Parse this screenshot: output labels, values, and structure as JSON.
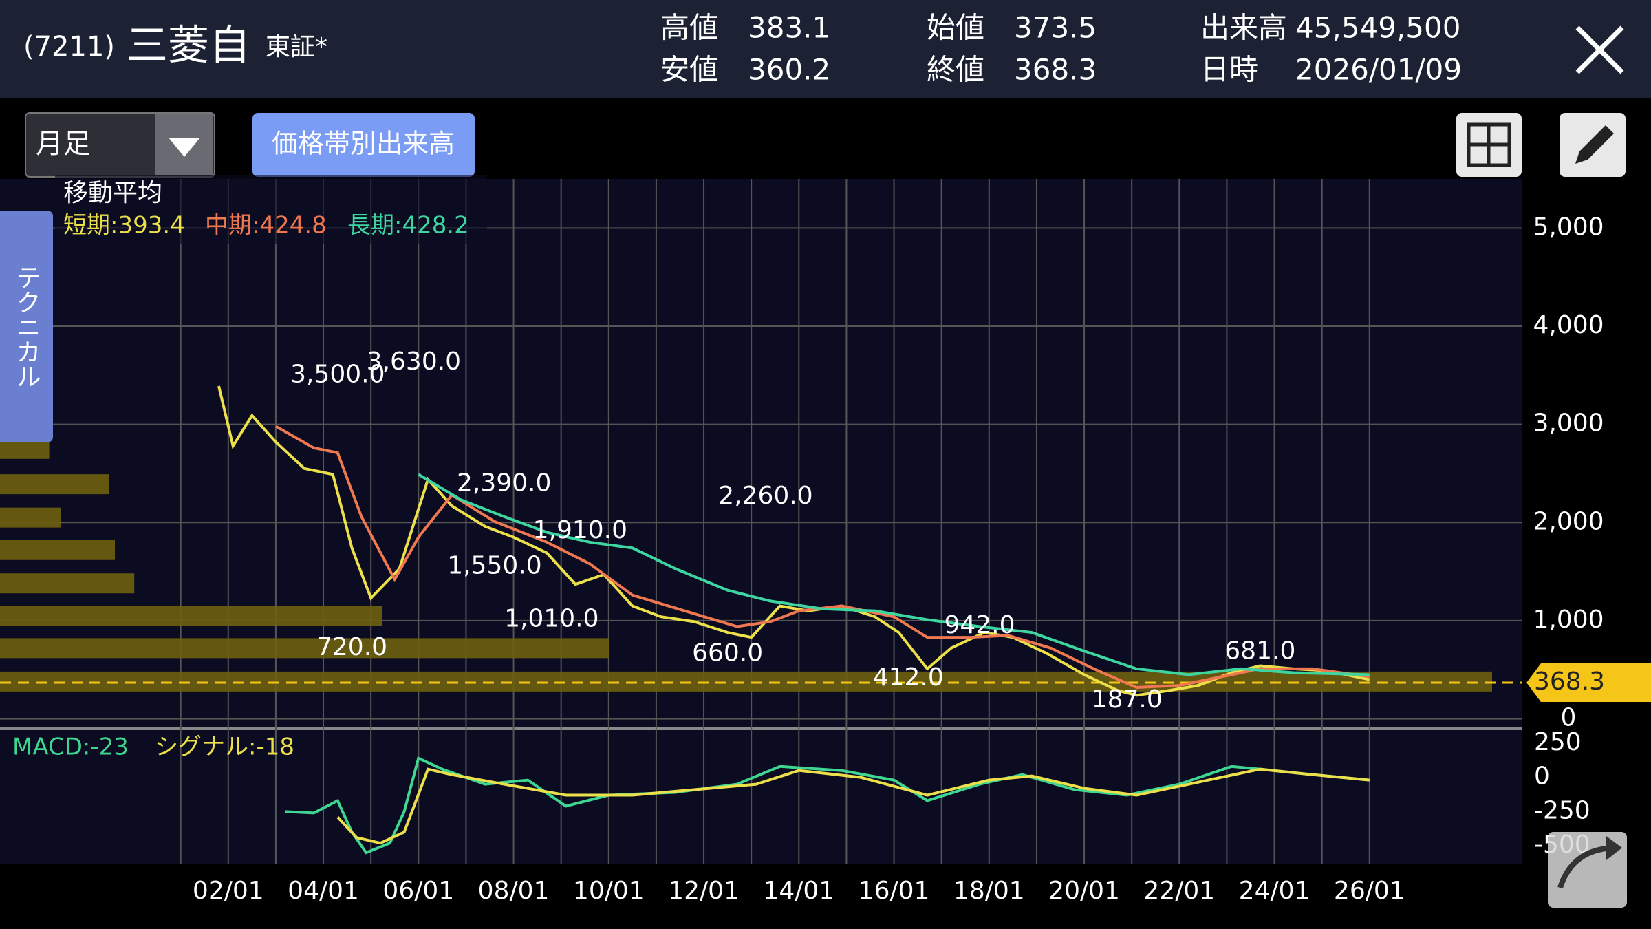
{
  "header": {
    "code": "(7211)",
    "name": "三菱自",
    "market": "東証*",
    "stats": [
      {
        "label": "高値",
        "value": "383.1"
      },
      {
        "label": "安値",
        "value": "360.2"
      },
      {
        "label": "始値",
        "value": "373.5"
      },
      {
        "label": "終値",
        "value": "368.3"
      },
      {
        "label": "出来高",
        "value": "45,549,500"
      },
      {
        "label": "日時",
        "value": "2026/01/09"
      }
    ]
  },
  "toolbar": {
    "period": "月足",
    "volume_button": "価格帯別出来高",
    "side_tab": "テクニカル"
  },
  "chart_data": {
    "type": "line",
    "legend_title": "移動平均",
    "xlim": [
      1997.2,
      2029.2
    ],
    "xticks": [
      {
        "value": 2001,
        "label": null
      },
      {
        "value": 2002,
        "label": "02/01"
      },
      {
        "value": 2003,
        "label": null
      },
      {
        "value": 2004,
        "label": "04/01"
      },
      {
        "value": 2005,
        "label": null
      },
      {
        "value": 2006,
        "label": "06/01"
      },
      {
        "value": 2007,
        "label": null
      },
      {
        "value": 2008,
        "label": "08/01"
      },
      {
        "value": 2009,
        "label": null
      },
      {
        "value": 2010,
        "label": "10/01"
      },
      {
        "value": 2011,
        "label": null
      },
      {
        "value": 2012,
        "label": "12/01"
      },
      {
        "value": 2013,
        "label": null
      },
      {
        "value": 2014,
        "label": "14/01"
      },
      {
        "value": 2015,
        "label": null
      },
      {
        "value": 2016,
        "label": "16/01"
      },
      {
        "value": 2017,
        "label": null
      },
      {
        "value": 2018,
        "label": "18/01"
      },
      {
        "value": 2019,
        "label": null
      },
      {
        "value": 2020,
        "label": "20/01"
      },
      {
        "value": 2021,
        "label": null
      },
      {
        "value": 2022,
        "label": "22/01"
      },
      {
        "value": 2023,
        "label": null
      },
      {
        "value": 2024,
        "label": "24/01"
      },
      {
        "value": 2025,
        "label": null
      },
      {
        "value": 2026,
        "label": "26/01"
      }
    ],
    "ylim": [
      -80,
      5500
    ],
    "yticks": [
      0,
      {
        "value": 1000,
        "label": "1,000"
      },
      {
        "value": 2000,
        "label": "2,000"
      },
      {
        "value": 3000,
        "label": "3,000"
      },
      {
        "value": 4000,
        "label": "4,000"
      },
      {
        "value": 5000,
        "label": "5,000"
      }
    ],
    "y2lim": [
      -630,
      345
    ],
    "y2ticks": [
      250,
      0,
      -250,
      -500
    ],
    "grid": true,
    "series": [
      {
        "name": "短期:393.4",
        "color": "#ece04a",
        "x": [
          2001.8,
          2002.1,
          2002.5,
          2003.0,
          2003.6,
          2004.2,
          2004.6,
          2005.0,
          2005.6,
          2006.2,
          2006.7,
          2007.4,
          2008.0,
          2008.7,
          2009.3,
          2009.9,
          2010.5,
          2011.1,
          2011.8,
          2012.5,
          2013.0,
          2013.6,
          2014.2,
          2014.9,
          2015.6,
          2016.1,
          2016.7,
          2017.2,
          2017.9,
          2018.5,
          2019.2,
          2020.0,
          2020.7,
          2021.1,
          2021.8,
          2022.4,
          2023.1,
          2023.7,
          2024.4,
          2025.1,
          2026.0
        ],
        "values": [
          3390,
          2780,
          3090,
          2820,
          2550,
          2490,
          1740,
          1230,
          1530,
          2440,
          2170,
          1960,
          1850,
          1690,
          1370,
          1470,
          1150,
          1040,
          990,
          880,
          830,
          1150,
          1100,
          1150,
          1040,
          880,
          510,
          720,
          880,
          830,
          670,
          450,
          290,
          240,
          290,
          340,
          470,
          540,
          510,
          490,
          400
        ]
      },
      {
        "name": "中期:424.8",
        "color": "#f07850",
        "x": [
          2003.0,
          2003.8,
          2004.3,
          2004.8,
          2005.5,
          2006.0,
          2006.7,
          2007.6,
          2008.7,
          2009.6,
          2010.5,
          2011.6,
          2012.7,
          2013.4,
          2014.0,
          2014.9,
          2016.0,
          2016.7,
          2017.6,
          2018.4,
          2019.3,
          2020.2,
          2021.1,
          2022.0,
          2022.9,
          2023.7,
          2024.8,
          2026.0
        ],
        "values": [
          2980,
          2760,
          2710,
          2060,
          1420,
          1850,
          2280,
          2010,
          1800,
          1580,
          1260,
          1100,
          940,
          990,
          1100,
          1150,
          1040,
          830,
          830,
          850,
          720,
          510,
          320,
          340,
          430,
          510,
          510,
          430
        ]
      },
      {
        "name": "長期:428.2",
        "color": "#3ed6a0",
        "x": [
          2006.0,
          2006.9,
          2007.8,
          2008.7,
          2009.6,
          2010.5,
          2011.4,
          2012.5,
          2013.4,
          2014.5,
          2015.6,
          2016.7,
          2017.8,
          2018.9,
          2020.0,
          2021.1,
          2022.2,
          2023.3,
          2024.4,
          2026.0
        ],
        "values": [
          2490,
          2230,
          2060,
          1900,
          1800,
          1740,
          1530,
          1310,
          1200,
          1120,
          1100,
          1010,
          940,
          880,
          690,
          510,
          450,
          510,
          470,
          450
        ]
      },
      {
        "name": "MACD:-23",
        "color": "#3ed690",
        "axis": "y2",
        "x": [
          2003.2,
          2003.8,
          2004.3,
          2004.6,
          2004.9,
          2005.4,
          2005.7,
          2006.0,
          2006.5,
          2007.4,
          2008.3,
          2009.1,
          2010.0,
          2011.4,
          2012.7,
          2013.6,
          2014.9,
          2016.0,
          2016.7,
          2017.8,
          2018.7,
          2019.8,
          2020.9,
          2022.0,
          2023.1,
          2023.7,
          2024.8,
          2026.0
        ],
        "values": [
          -250,
          -260,
          -170,
          -400,
          -550,
          -480,
          -250,
          140,
          60,
          -50,
          -20,
          -210,
          -130,
          -110,
          -50,
          80,
          50,
          -20,
          -170,
          -50,
          20,
          -90,
          -130,
          -50,
          80,
          60,
          20,
          -20
        ]
      },
      {
        "name": "シグナル:-18",
        "color": "#ece04a",
        "axis": "y2",
        "x": [
          2004.3,
          2004.7,
          2005.2,
          2005.7,
          2006.2,
          2006.7,
          2007.8,
          2009.1,
          2010.5,
          2011.8,
          2013.1,
          2014.0,
          2015.3,
          2016.7,
          2018.0,
          2018.9,
          2020.0,
          2021.1,
          2022.2,
          2023.7,
          2024.8,
          2026.0
        ],
        "values": [
          -290,
          -440,
          -480,
          -400,
          60,
          20,
          -50,
          -130,
          -130,
          -90,
          -50,
          50,
          0,
          -130,
          -20,
          10,
          -80,
          -130,
          -50,
          60,
          20,
          -20
        ]
      }
    ],
    "annotations": [
      {
        "x": 2004.3,
        "value": 3500,
        "label": "3,500.0"
      },
      {
        "x": 2005.9,
        "value": 3630,
        "label": "3,630.0"
      },
      {
        "x": 2007.8,
        "value": 2390,
        "label": "2,390.0"
      },
      {
        "x": 2009.4,
        "value": 1910,
        "label": "1,910.0"
      },
      {
        "x": 2007.6,
        "value": 1550,
        "label": "1,550.0"
      },
      {
        "x": 2008.8,
        "value": 1010,
        "label": "1,010.0"
      },
      {
        "x": 2004.6,
        "value": 720,
        "label": "720.0"
      },
      {
        "x": 2013.3,
        "value": 2260,
        "label": "2,260.0"
      },
      {
        "x": 2012.5,
        "value": 660,
        "label": "660.0"
      },
      {
        "x": 2017.8,
        "value": 942,
        "label": "942.0"
      },
      {
        "x": 2016.3,
        "value": 412,
        "label": "412.0"
      },
      {
        "x": 2020.9,
        "value": 187,
        "label": "187.0"
      },
      {
        "x": 2023.7,
        "value": 681,
        "label": "681.0"
      }
    ],
    "volume_profile": {
      "color": "#6e6010",
      "prices": [
        2750,
        2390,
        2050,
        1720,
        1380,
        1050,
        720,
        380
      ],
      "values": [
        3.3,
        7.3,
        4.1,
        7.7,
        9.0,
        25.6,
        40.8,
        100
      ]
    },
    "last_price": {
      "value": 368.3,
      "label": "368.3",
      "color": "#f5c518"
    }
  }
}
